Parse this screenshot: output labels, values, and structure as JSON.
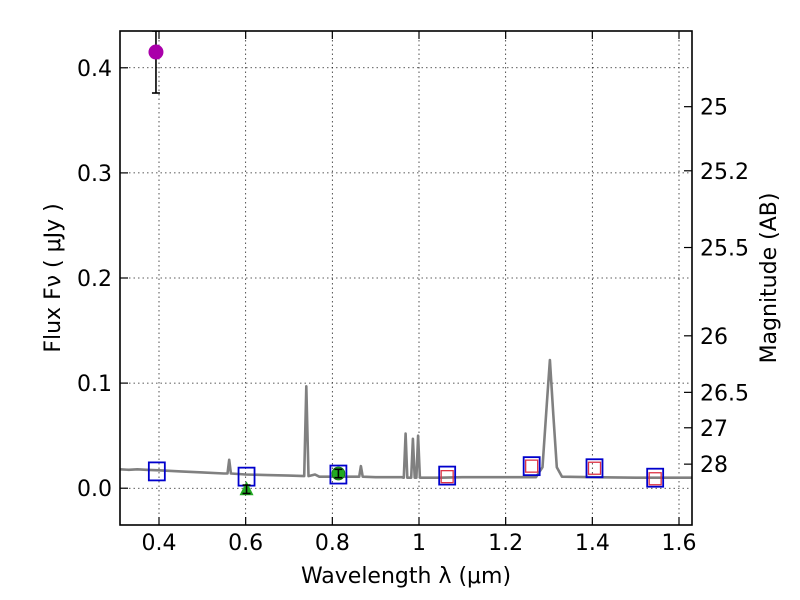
{
  "chart_data": {
    "type": "scatter",
    "title": "",
    "xlabel": "Wavelength  λ (μm)",
    "ylabel": "Flux  Fν  ( μJy )",
    "y2label": "Magnitude (AB)",
    "xlim": [
      0.31,
      1.63
    ],
    "ylim": [
      -0.035,
      0.435
    ],
    "grid": true,
    "x_ticks": [
      0.4,
      0.6,
      0.8,
      1.0,
      1.2,
      1.4,
      1.6
    ],
    "x_tick_labels": [
      "0.4",
      "0.6",
      "0.8",
      "1",
      "1.2",
      "1.4",
      "1.6"
    ],
    "y_ticks": [
      0.0,
      0.1,
      0.2,
      0.3,
      0.4
    ],
    "y_tick_labels": [
      "0.0",
      "0.1",
      "0.2",
      "0.3",
      "0.4"
    ],
    "mag_ticks": [
      {
        "label": "25",
        "flux": 0.363
      },
      {
        "label": "25.2",
        "flux": 0.302
      },
      {
        "label": "25.5",
        "flux": 0.229
      },
      {
        "label": "26",
        "flux": 0.145
      },
      {
        "label": "26.5",
        "flux": 0.0912
      },
      {
        "label": "27",
        "flux": 0.0575
      },
      {
        "label": "28",
        "flux": 0.0229
      }
    ],
    "colors": {
      "model": "#808080",
      "model_photometry": "#0000cc",
      "observed_nir": "#dd3344",
      "detection": "#22aa22",
      "upper_point": "#aa00aa",
      "errorbar": "#000000"
    },
    "series": [
      {
        "name": "model spectrum",
        "kind": "line",
        "points": [
          [
            0.31,
            0.018
          ],
          [
            0.33,
            0.0175
          ],
          [
            0.35,
            0.018
          ],
          [
            0.37,
            0.0175
          ],
          [
            0.4,
            0.017
          ],
          [
            0.45,
            0.016
          ],
          [
            0.5,
            0.015
          ],
          [
            0.55,
            0.014
          ],
          [
            0.558,
            0.014
          ],
          [
            0.562,
            0.027
          ],
          [
            0.566,
            0.014
          ],
          [
            0.6,
            0.013
          ],
          [
            0.65,
            0.0125
          ],
          [
            0.7,
            0.012
          ],
          [
            0.735,
            0.0115
          ],
          [
            0.74,
            0.097
          ],
          [
            0.745,
            0.0115
          ],
          [
            0.76,
            0.013
          ],
          [
            0.77,
            0.011
          ],
          [
            0.8,
            0.011
          ],
          [
            0.84,
            0.011
          ],
          [
            0.862,
            0.011
          ],
          [
            0.866,
            0.021
          ],
          [
            0.87,
            0.011
          ],
          [
            0.9,
            0.0105
          ],
          [
            0.96,
            0.0105
          ],
          [
            0.965,
            0.01
          ],
          [
            0.969,
            0.052
          ],
          [
            0.973,
            0.01
          ],
          [
            0.982,
            0.01
          ],
          [
            0.986,
            0.047
          ],
          [
            0.99,
            0.01
          ],
          [
            0.994,
            0.01
          ],
          [
            0.998,
            0.05
          ],
          [
            1.002,
            0.01
          ],
          [
            1.05,
            0.01
          ],
          [
            1.1,
            0.0105
          ],
          [
            1.2,
            0.0105
          ],
          [
            1.27,
            0.0105
          ],
          [
            1.285,
            0.02
          ],
          [
            1.295,
            0.08
          ],
          [
            1.302,
            0.122
          ],
          [
            1.31,
            0.07
          ],
          [
            1.318,
            0.02
          ],
          [
            1.33,
            0.011
          ],
          [
            1.4,
            0.0105
          ],
          [
            1.5,
            0.01
          ],
          [
            1.63,
            0.01
          ]
        ]
      },
      {
        "name": "model photometry",
        "kind": "open-square",
        "points": [
          [
            0.395,
            0.016
          ],
          [
            0.602,
            0.011
          ],
          [
            0.814,
            0.013
          ],
          [
            1.065,
            0.012
          ],
          [
            1.26,
            0.021
          ],
          [
            1.405,
            0.019
          ],
          [
            1.545,
            0.01
          ]
        ]
      },
      {
        "name": "observed NIR",
        "kind": "small-open-square",
        "points": [
          [
            1.065,
            0.011
          ],
          [
            1.26,
            0.021
          ],
          [
            1.405,
            0.019
          ],
          [
            1.545,
            0.009
          ]
        ]
      },
      {
        "name": "detection",
        "kind": "circle",
        "points": [
          {
            "x": 0.814,
            "y": 0.014,
            "err": 0.004
          }
        ]
      },
      {
        "name": "non-detection",
        "kind": "triangle",
        "points": [
          {
            "x": 0.602,
            "y": -0.001,
            "err": 0.004
          }
        ]
      },
      {
        "name": "bright point",
        "kind": "circle",
        "points": [
          {
            "x": 0.393,
            "y": 0.415,
            "err_low": 0.039,
            "err_high": 0.02
          }
        ]
      }
    ]
  }
}
